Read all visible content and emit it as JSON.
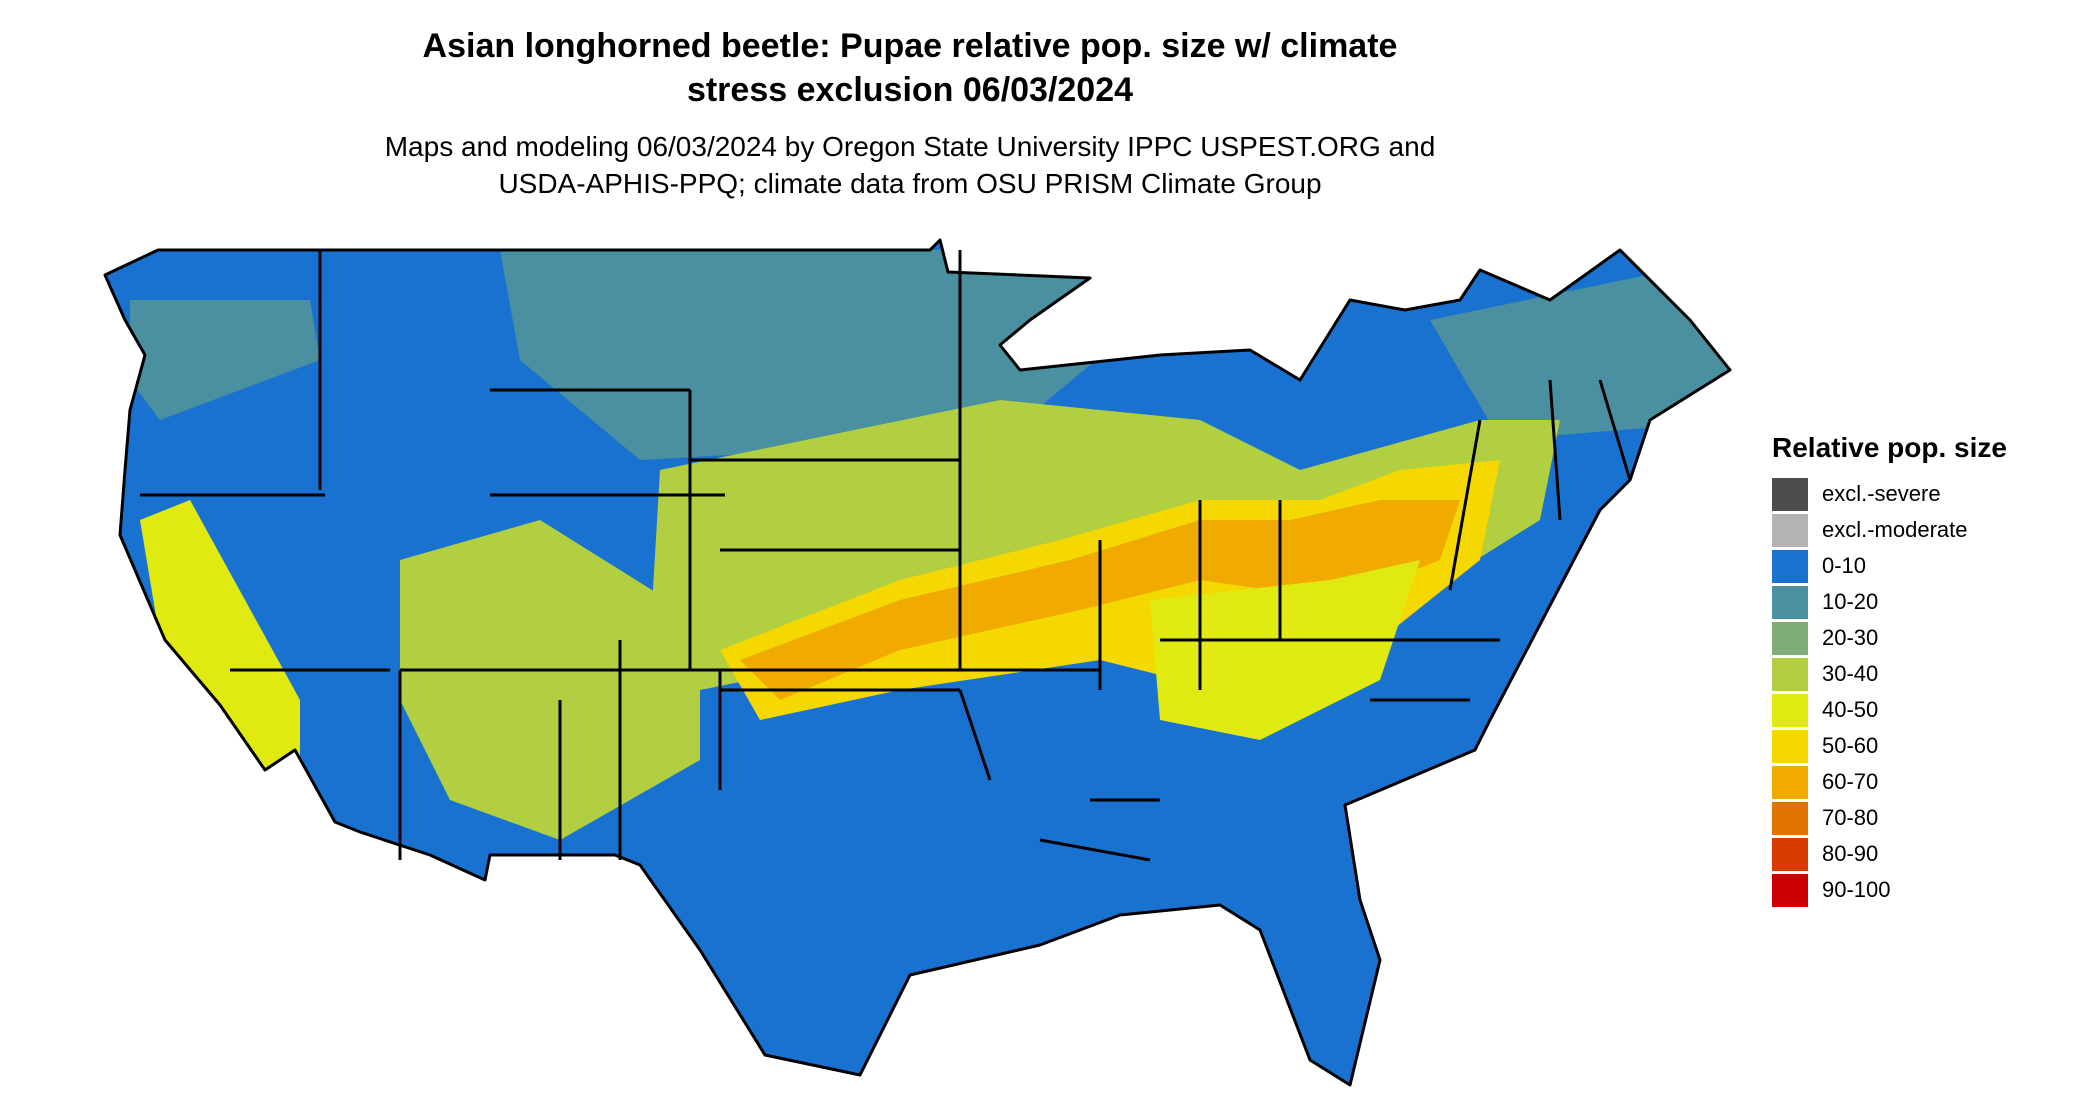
{
  "title_lines": [
    "Asian longhorned beetle: Pupae relative pop. size w/ climate",
    "stress exclusion 06/03/2024"
  ],
  "subtitle_lines": [
    "Maps and modeling 06/03/2024 by Oregon State University IPPC USPEST.ORG and",
    "USDA-APHIS-PPQ; climate data from OSU PRISM Climate Group"
  ],
  "legend": {
    "title": "Relative pop. size",
    "items": [
      {
        "label": "excl.-severe",
        "color": "#4d4d4d"
      },
      {
        "label": "excl.-moderate",
        "color": "#b3b3b3"
      },
      {
        "label": "0-10",
        "color": "#1a72d0"
      },
      {
        "label": "10-20",
        "color": "#4a90a0"
      },
      {
        "label": "20-30",
        "color": "#7fad76"
      },
      {
        "label": "30-40",
        "color": "#b2cf41"
      },
      {
        "label": "40-50",
        "color": "#e0ea10"
      },
      {
        "label": "50-60",
        "color": "#f5d800"
      },
      {
        "label": "60-70",
        "color": "#f0aa00"
      },
      {
        "label": "70-80",
        "color": "#e07400"
      },
      {
        "label": "80-90",
        "color": "#d83a00"
      },
      {
        "label": "90-100",
        "color": "#cc0000"
      }
    ]
  },
  "map": {
    "region": "contiguous-united-states",
    "boundary_color": "#000000",
    "water_color": "#ffffff"
  }
}
